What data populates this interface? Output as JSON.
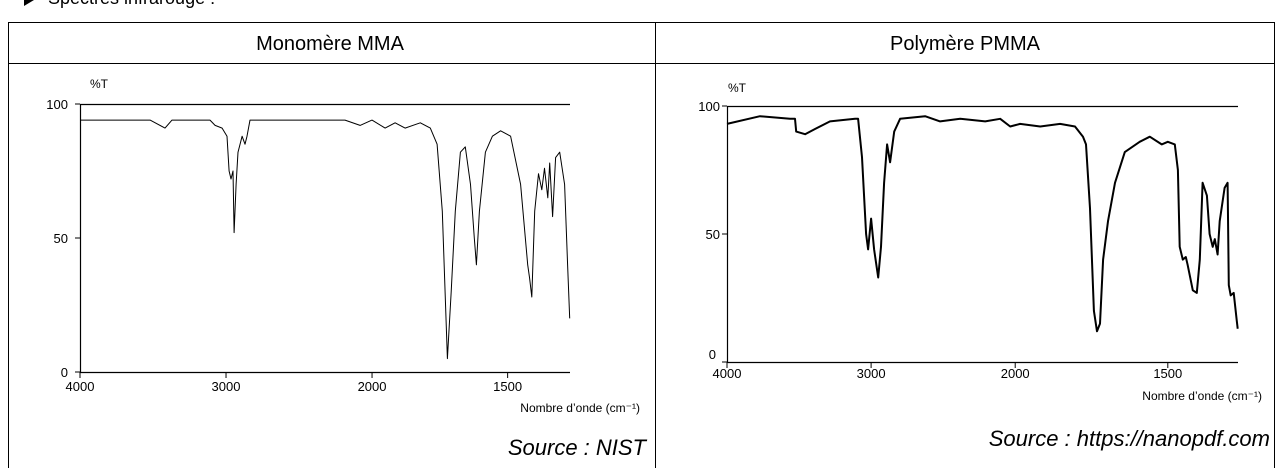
{
  "heading": "Spectres infrarouge :",
  "table": {
    "headers": [
      "Monomère MMA",
      "Polymère PMMA"
    ],
    "sources": [
      "Source : NIST",
      "Source : https://nanopdf.com"
    ]
  },
  "chart_data": [
    {
      "type": "line",
      "y_label": "%T",
      "x_label": "Nombre d’onde (cm⁻¹)",
      "color": "#000000",
      "xlim": [
        4000,
        1270
      ],
      "ylim": [
        0,
        100
      ],
      "x_break": 2000,
      "xticks": [
        4000,
        3000,
        2000,
        1500
      ],
      "yticks": [
        0,
        50,
        100
      ],
      "x": [
        4000,
        3520,
        3418,
        3370,
        3110,
        3075,
        3027,
        2993,
        2979,
        2966,
        2952,
        2945,
        2931,
        2918,
        2890,
        2870,
        2856,
        2836,
        2493,
        2185,
        2082,
        2000,
        1952,
        1915,
        1878,
        1822,
        1785,
        1760,
        1741,
        1722,
        1708,
        1693,
        1674,
        1656,
        1637,
        1623,
        1615,
        1604,
        1582,
        1556,
        1526,
        1489,
        1452,
        1426,
        1419,
        1411,
        1400,
        1386,
        1374,
        1364,
        1352,
        1345,
        1334,
        1323,
        1308,
        1290,
        1279,
        1271
      ],
      "values": [
        94,
        94,
        91,
        94,
        94,
        92,
        91,
        88,
        75,
        72,
        75,
        52,
        70,
        82,
        88,
        85,
        88,
        94,
        94,
        94,
        92,
        94,
        91,
        93,
        91,
        93,
        91,
        85,
        60,
        5,
        30,
        60,
        82,
        84,
        70,
        50,
        40,
        60,
        82,
        88,
        90,
        88,
        70,
        40,
        35,
        28,
        60,
        74,
        68,
        76,
        65,
        78,
        58,
        80,
        82,
        70,
        40,
        20
      ]
    },
    {
      "type": "line",
      "y_label": "%T",
      "x_label": "Nombre d’onde (cm⁻¹)",
      "color": "#000000",
      "xlim": [
        4000,
        1270
      ],
      "ylim": [
        0,
        100
      ],
      "x_break": 2000,
      "xticks": [
        4000,
        3000,
        2000,
        1500
      ],
      "yticks": [
        0,
        50,
        100
      ],
      "x": [
        4000,
        3771,
        3563,
        3528,
        3520,
        3458,
        3389,
        3285,
        3111,
        3090,
        3063,
        3035,
        3021,
        3000,
        2979,
        2951,
        2931,
        2910,
        2889,
        2868,
        2840,
        2799,
        2625,
        2521,
        2382,
        2208,
        2104,
        2035,
        1984,
        1918,
        1853,
        1804,
        1778,
        1768,
        1755,
        1742,
        1732,
        1722,
        1712,
        1696,
        1673,
        1641,
        1592,
        1559,
        1520,
        1500,
        1477,
        1467,
        1461,
        1451,
        1441,
        1435,
        1418,
        1405,
        1395,
        1386,
        1372,
        1363,
        1353,
        1346,
        1337,
        1330,
        1314,
        1304,
        1300,
        1294,
        1284,
        1274,
        1271
      ],
      "values": [
        93,
        96,
        95,
        95,
        90,
        89,
        91,
        94,
        95,
        95,
        80,
        50,
        44,
        56,
        44,
        33,
        45,
        70,
        85,
        78,
        90,
        95,
        96,
        94,
        95,
        94,
        95,
        92,
        93,
        92,
        93,
        92,
        88,
        85,
        60,
        20,
        12,
        15,
        40,
        55,
        70,
        82,
        86,
        88,
        85,
        86,
        85,
        75,
        45,
        40,
        41,
        38,
        28,
        27,
        40,
        70,
        65,
        50,
        45,
        48,
        42,
        55,
        68,
        70,
        30,
        26,
        27,
        16,
        13
      ]
    }
  ]
}
